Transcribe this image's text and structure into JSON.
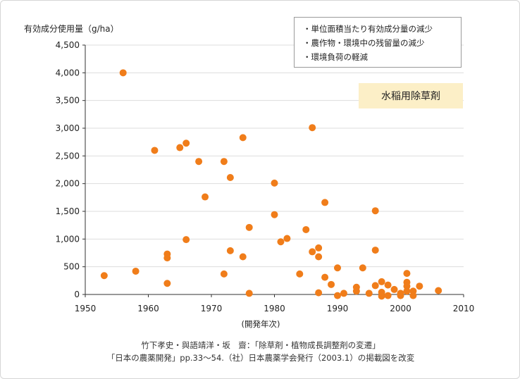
{
  "legend_notes": [
    "・単位面積当たり有効成分量の減少",
    "・農作物・環境中の残留量の減少",
    "・環境負荷の軽減"
  ],
  "highlight_label": "水稲用除草剤",
  "source": {
    "line1": "竹下孝史・與語靖洋・坂　齋：「除草剤・植物成長調整剤の変遷」",
    "line2": "「日本の農薬開発」pp.33～54.（社）日本農薬学会発行（2003.1）の掲載図を改変"
  },
  "colors": {
    "point": "#f07d1a",
    "axis": "#333333",
    "grid": "#dddddd",
    "highlight_bg": "#fcefc7"
  },
  "chart_data": {
    "type": "scatter",
    "ylabel": "有効成分使用量（g/ha）",
    "xlabel": "(開発年次)",
    "xlim": [
      1950,
      2010
    ],
    "ylim": [
      0,
      4500
    ],
    "x_ticks": [
      "1950",
      "1960",
      "1970",
      "1980",
      "1990",
      "2000",
      "2010"
    ],
    "y_ticks": [
      "0",
      "500",
      "1,000",
      "1,500",
      "2,000",
      "2,500",
      "3,000",
      "3,500",
      "4,000",
      "4,500"
    ],
    "grid": true,
    "points": [
      [
        1953,
        340
      ],
      [
        1956,
        4000
      ],
      [
        1958,
        420
      ],
      [
        1961,
        2600
      ],
      [
        1963,
        730
      ],
      [
        1963,
        660
      ],
      [
        1963,
        200
      ],
      [
        1965,
        2650
      ],
      [
        1966,
        2730
      ],
      [
        1966,
        990
      ],
      [
        1968,
        2400
      ],
      [
        1969,
        1760
      ],
      [
        1972,
        2400
      ],
      [
        1972,
        370
      ],
      [
        1973,
        2110
      ],
      [
        1973,
        790
      ],
      [
        1975,
        2830
      ],
      [
        1975,
        680
      ],
      [
        1976,
        1210
      ],
      [
        1976,
        20
      ],
      [
        1980,
        2010
      ],
      [
        1980,
        1440
      ],
      [
        1981,
        950
      ],
      [
        1982,
        1010
      ],
      [
        1984,
        370
      ],
      [
        1985,
        1170
      ],
      [
        1986,
        3010
      ],
      [
        1986,
        770
      ],
      [
        1987,
        840
      ],
      [
        1987,
        680
      ],
      [
        1987,
        30
      ],
      [
        1988,
        1660
      ],
      [
        1988,
        310
      ],
      [
        1989,
        180
      ],
      [
        1990,
        480
      ],
      [
        1990,
        -20
      ],
      [
        1991,
        20
      ],
      [
        1993,
        130
      ],
      [
        1993,
        60
      ],
      [
        1994,
        480
      ],
      [
        1995,
        20
      ],
      [
        1996,
        1510
      ],
      [
        1996,
        800
      ],
      [
        1996,
        160
      ],
      [
        1997,
        230
      ],
      [
        1997,
        40
      ],
      [
        1997,
        -30
      ],
      [
        1998,
        170
      ],
      [
        1998,
        -20
      ],
      [
        1999,
        90
      ],
      [
        2000,
        20
      ],
      [
        2000,
        -20
      ],
      [
        2001,
        380
      ],
      [
        2001,
        220
      ],
      [
        2001,
        150
      ],
      [
        2001,
        60
      ],
      [
        2002,
        60
      ],
      [
        2002,
        -20
      ],
      [
        2003,
        150
      ],
      [
        2006,
        70
      ]
    ]
  }
}
